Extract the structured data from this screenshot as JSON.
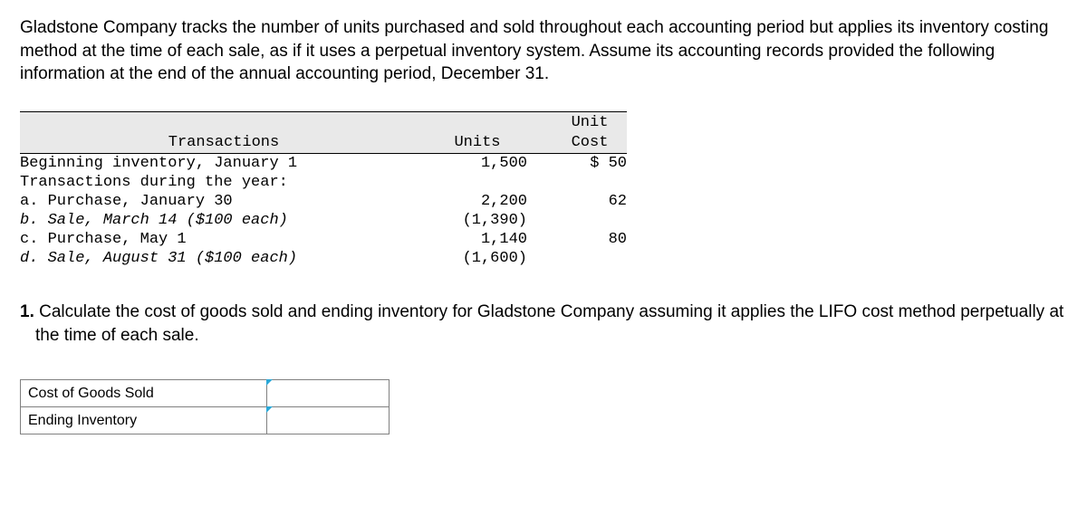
{
  "intro": "Gladstone Company tracks the number of units purchased and sold throughout each accounting period but applies its inventory costing method at the time of each sale, as if it uses a perpetual inventory system. Assume its accounting records provided the following information at the end of the annual accounting period, December 31.",
  "table": {
    "headers": {
      "transactions": "Transactions",
      "units": "Units",
      "unit": "Unit",
      "cost": "Cost"
    },
    "rows": [
      {
        "label": "Beginning inventory, January 1",
        "units": "1,500",
        "cost": "$ 50"
      },
      {
        "label": "Transactions during the year:",
        "units": "",
        "cost": ""
      },
      {
        "label": "a. Purchase, January 30",
        "units": "2,200",
        "cost": "62"
      },
      {
        "label": "b. Sale, March 14 ($100 each)",
        "units": "(1,390)",
        "cost": ""
      },
      {
        "label": "c. Purchase, May 1",
        "units": "1,140",
        "cost": "80"
      },
      {
        "label": "d. Sale, August 31 ($100 each)",
        "units": "(1,600)",
        "cost": ""
      }
    ]
  },
  "question": {
    "number": "1.",
    "text": "Calculate the cost of goods sold and ending inventory for Gladstone Company assuming it applies the LIFO cost method perpetually at the time of each sale."
  },
  "answer": {
    "rows": [
      {
        "label": "Cost of Goods Sold"
      },
      {
        "label": "Ending Inventory"
      }
    ]
  }
}
